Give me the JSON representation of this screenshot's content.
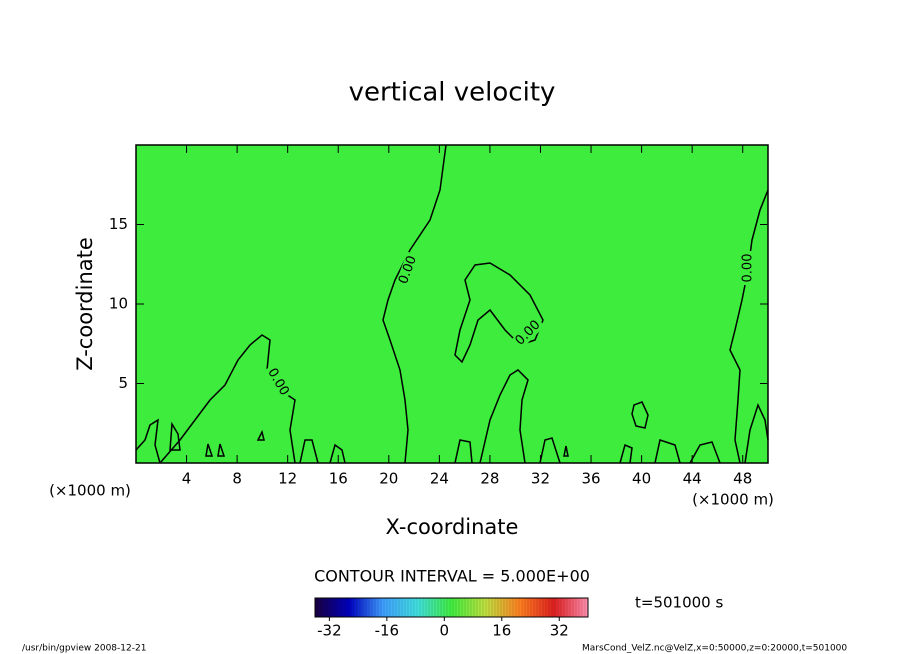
{
  "chart_data": {
    "type": "contour",
    "title": "vertical velocity",
    "x_label": "X-coordinate",
    "y_label": "Z-coordinate",
    "x_unit_left": "(×1000 m)",
    "x_unit_right": "(×1000 m)",
    "xlim": [
      0,
      50
    ],
    "xticks": [
      4,
      8,
      12,
      16,
      20,
      24,
      28,
      32,
      36,
      40,
      44,
      48
    ],
    "ylim": [
      0,
      20
    ],
    "yticks": [
      5,
      10,
      15
    ],
    "fill_color": "#3dec3d",
    "line_color": "#000000",
    "contour_levels": [
      {
        "value": 0,
        "label": "0.00"
      }
    ],
    "contour_interval_text": "CONTOUR INTERVAL = 5.000E+00",
    "colorbar": {
      "clim": [
        -36,
        40
      ],
      "ticks": [
        -32,
        -16,
        0,
        16,
        32
      ],
      "colors": [
        "#1a0040",
        "#0000c0",
        "#40a0ff",
        "#40e0e0",
        "#40ee40",
        "#c0e040",
        "#ff8020",
        "#e02020",
        "#ff90b0"
      ]
    },
    "time_label": "t=501000 s",
    "footer_left": "/usr/bin/gpview   2008-12-21",
    "footer_right": "MarsCond_VelZ.nc@VelZ,x=0:50000,z=0:20000,t=501000"
  }
}
